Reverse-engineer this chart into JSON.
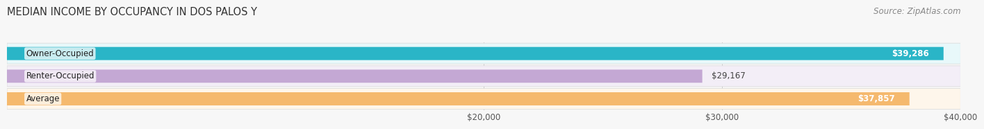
{
  "title": "MEDIAN INCOME BY OCCUPANCY IN DOS PALOS Y",
  "source": "Source: ZipAtlas.com",
  "categories": [
    "Owner-Occupied",
    "Renter-Occupied",
    "Average"
  ],
  "values": [
    39286,
    29167,
    37857
  ],
  "bar_colors": [
    "#2ab5c7",
    "#c4a8d4",
    "#f5b96e"
  ],
  "bar_bg_colors": [
    "#e8f8fa",
    "#f3eef7",
    "#fef6eb"
  ],
  "value_labels": [
    "$39,286",
    "$29,167",
    "$37,857"
  ],
  "xmin": 0,
  "xmax": 40000,
  "xticks": [
    20000,
    30000,
    40000
  ],
  "xtick_labels": [
    "$20,000",
    "$30,000",
    "$40,000"
  ],
  "background_color": "#f7f7f7",
  "title_fontsize": 10.5,
  "source_fontsize": 8.5,
  "bar_label_fontsize": 8.5,
  "value_label_fontsize": 8.5,
  "tick_fontsize": 8.5
}
